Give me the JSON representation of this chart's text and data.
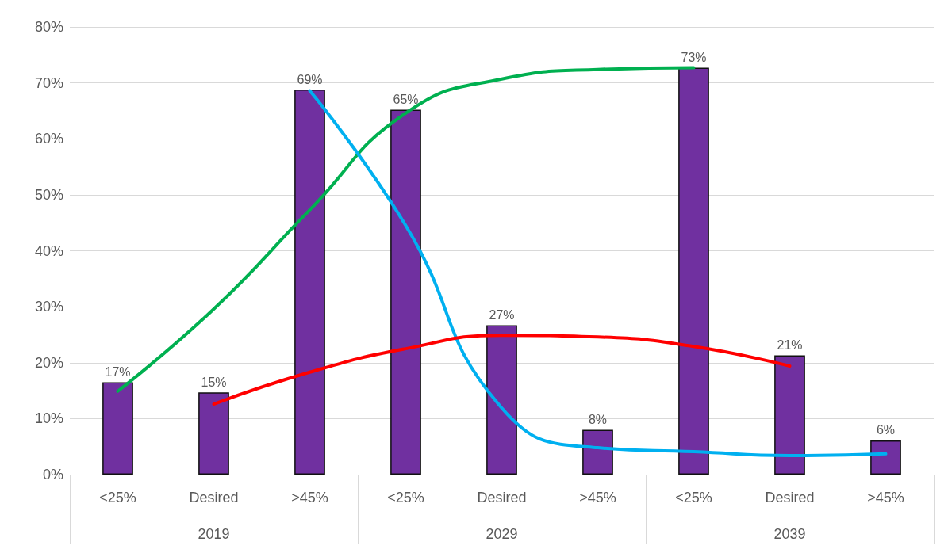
{
  "chart_data": {
    "type": "bar",
    "categories": [
      "<25%",
      "Desired",
      ">45%",
      "<25%",
      "Desired",
      ">45%",
      "<25%",
      "Desired",
      ">45%"
    ],
    "series": [
      {
        "color": "#7030a0",
        "values": [
          16.5,
          14.7,
          68.8,
          65.2,
          26.7,
          8,
          72.7,
          21.3,
          6.1
        ],
        "value_labels": [
          "17%",
          "15%",
          "69%",
          "65%",
          "27%",
          "8%",
          "73%",
          "21%",
          "6%"
        ]
      },
      {
        "type": "line",
        "color": "#00b050",
        "values": [
          14.9,
          29.6,
          47.3,
          64.6,
          70.7,
          72.4,
          72.7,
          null,
          null
        ]
      },
      {
        "type": "line",
        "color": "#00b0f0",
        "values": [
          null,
          null,
          68.6,
          44.5,
          11.9,
          4.8,
          4.1,
          3.4,
          3.7
        ]
      },
      {
        "type": "line",
        "color": "#ff0000",
        "values": [
          null,
          12.6,
          18.3,
          22.5,
          24.9,
          24.6,
          22.9,
          19.4,
          null
        ]
      }
    ],
    "annotations": [
      "2019",
      "2029",
      "2039"
    ],
    "ylim": [
      0,
      80
    ],
    "yticks": [
      {
        "value": 0,
        "label": "0%"
      },
      {
        "value": 10,
        "label": "10%"
      },
      {
        "value": 20,
        "label": "20%"
      },
      {
        "value": 30,
        "label": "30%"
      },
      {
        "value": 40,
        "label": "40%"
      },
      {
        "value": 50,
        "label": "50%"
      },
      {
        "value": 60,
        "label": "60%"
      },
      {
        "value": 70,
        "label": "70%"
      },
      {
        "value": 80,
        "label": "80%"
      }
    ],
    "grid": "y",
    "marker": "none",
    "line_style": "solid"
  }
}
